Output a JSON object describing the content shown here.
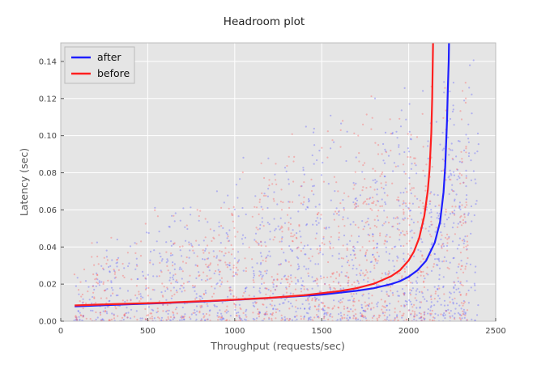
{
  "chart_data": {
    "type": "scatter",
    "title": "Headroom plot",
    "xlabel": "Throughput (requests/sec)",
    "ylabel": "Latency (sec)",
    "xlim": [
      0,
      2500
    ],
    "ylim": [
      0,
      0.15
    ],
    "xticks": [
      0,
      500,
      1000,
      1500,
      2000,
      2500
    ],
    "xtick_labels": [
      "0",
      "500",
      "1000",
      "1500",
      "2000",
      "2500"
    ],
    "yticks": [
      0.0,
      0.02,
      0.04,
      0.06,
      0.08,
      0.1,
      0.12,
      0.14
    ],
    "ytick_labels": [
      "0.00",
      "0.02",
      "0.04",
      "0.06",
      "0.08",
      "0.10",
      "0.12",
      "0.14"
    ],
    "grid": true,
    "background": "#e5e5e5",
    "legend": {
      "position": "top-left",
      "entries": [
        {
          "label": "after",
          "color": "#1f1fff"
        },
        {
          "label": "before",
          "color": "#ff1f1f"
        }
      ]
    },
    "series": [
      {
        "name": "after",
        "color": "#1f1fff",
        "kind": "fit-line",
        "x": [
          80,
          300,
          600,
          900,
          1200,
          1500,
          1700,
          1800,
          1900,
          1950,
          2000,
          2050,
          2100,
          2150,
          2180,
          2200,
          2210,
          2220,
          2225,
          2230,
          2232
        ],
        "y": [
          0.008,
          0.0088,
          0.0098,
          0.011,
          0.0125,
          0.0143,
          0.0164,
          0.0178,
          0.02,
          0.0216,
          0.024,
          0.0274,
          0.0326,
          0.0424,
          0.0535,
          0.0695,
          0.0835,
          0.108,
          0.125,
          0.14,
          0.151
        ]
      },
      {
        "name": "before",
        "color": "#ff1f1f",
        "kind": "fit-line",
        "x": [
          80,
          300,
          600,
          900,
          1200,
          1400,
          1600,
          1700,
          1800,
          1900,
          1950,
          2000,
          2030,
          2060,
          2090,
          2110,
          2120,
          2130,
          2135,
          2140
        ],
        "y": [
          0.0085,
          0.0092,
          0.01,
          0.0111,
          0.0126,
          0.014,
          0.0162,
          0.0178,
          0.0202,
          0.0243,
          0.0275,
          0.0328,
          0.0375,
          0.0448,
          0.0568,
          0.0705,
          0.082,
          0.1015,
          0.12,
          0.151
        ]
      },
      {
        "name": "after",
        "color": "#4f4fff",
        "kind": "scatter",
        "x_range": [
          80,
          2400
        ],
        "y_range": [
          0.0,
          0.148
        ],
        "approx_count": 2600
      },
      {
        "name": "before",
        "color": "#ff4f4f",
        "kind": "scatter",
        "x_range": [
          80,
          2350
        ],
        "y_range": [
          0.0,
          0.148
        ],
        "approx_count": 2600
      }
    ]
  }
}
